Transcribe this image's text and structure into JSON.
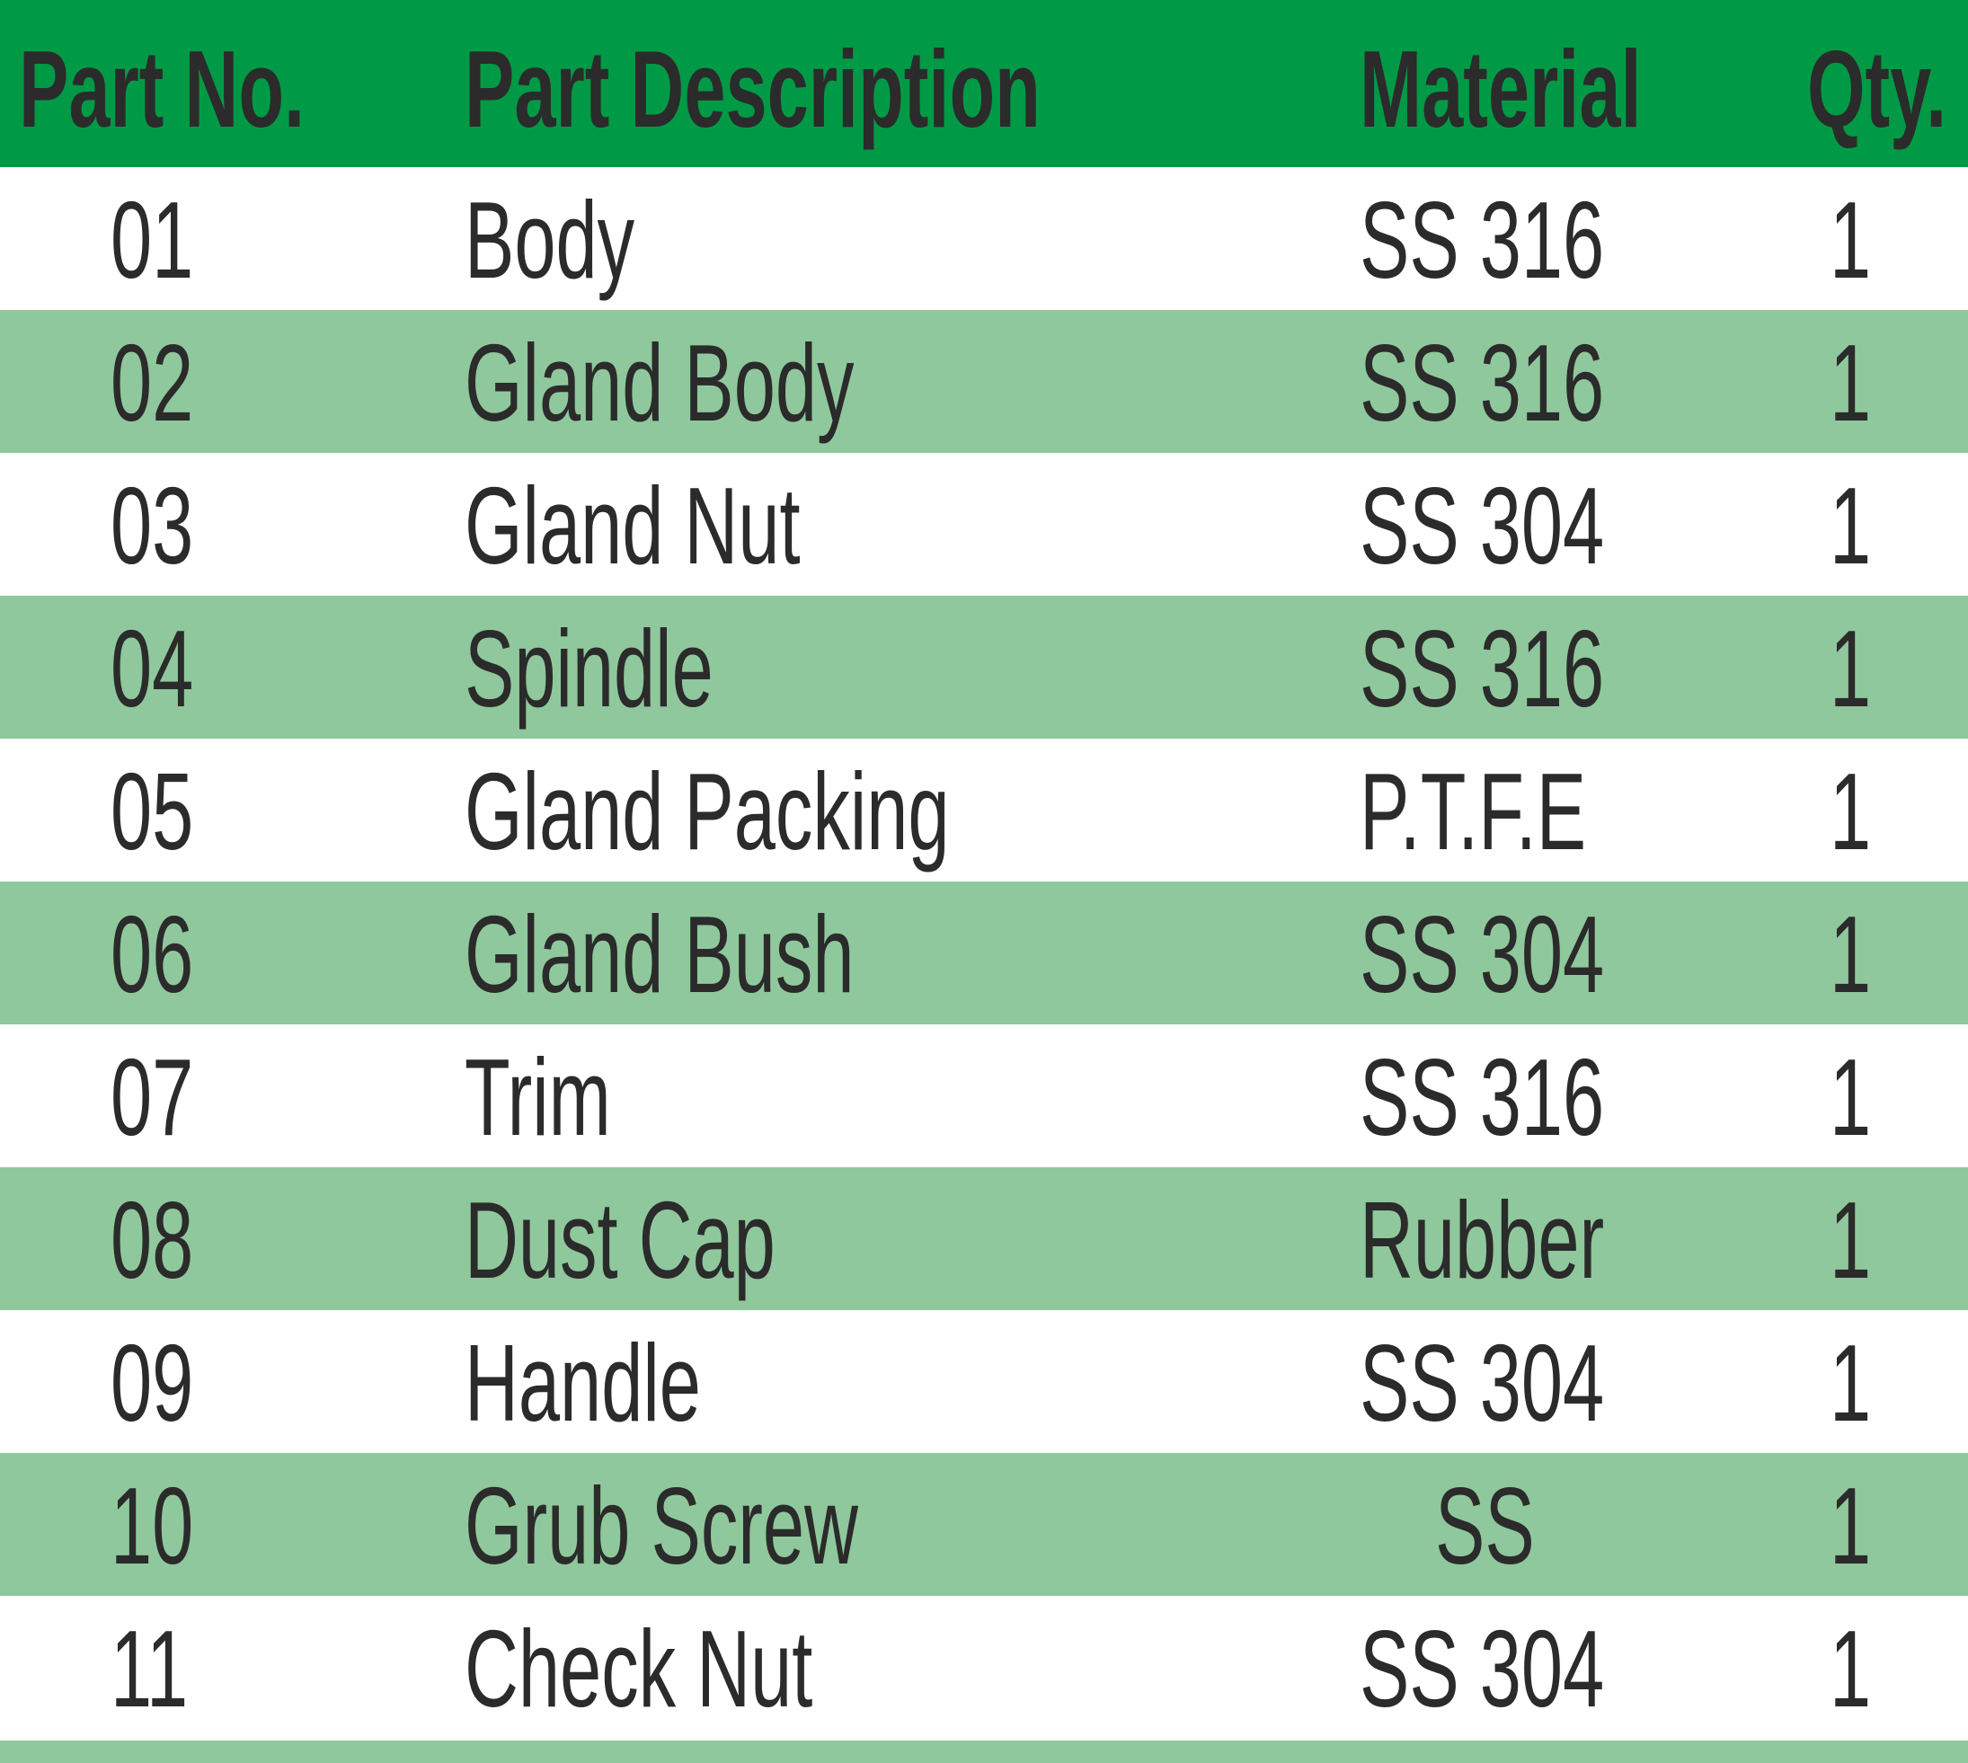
{
  "header": {
    "part_no": "Part No.",
    "description": "Part Description",
    "material": "Material",
    "qty": "Qty."
  },
  "rows": [
    {
      "part_no": "01",
      "description": "Body",
      "material": "SS 316",
      "qty": "1"
    },
    {
      "part_no": "02",
      "description": "Gland Body",
      "material": "SS 316",
      "qty": "1"
    },
    {
      "part_no": "03",
      "description": "Gland Nut",
      "material": "SS 304",
      "qty": "1"
    },
    {
      "part_no": "04",
      "description": "Spindle",
      "material": "SS 316",
      "qty": "1"
    },
    {
      "part_no": "05",
      "description": "Gland Packing",
      "material": "P.T.F.E",
      "qty": "1"
    },
    {
      "part_no": "06",
      "description": "Gland Bush",
      "material": "SS 304",
      "qty": "1"
    },
    {
      "part_no": "07",
      "description": "Trim",
      "material": "SS 316",
      "qty": "1"
    },
    {
      "part_no": "08",
      "description": "Dust Cap",
      "material": "Rubber",
      "qty": "1"
    },
    {
      "part_no": "09",
      "description": "Handle",
      "material": "SS 304",
      "qty": "1"
    },
    {
      "part_no": "10",
      "description": "Grub Screw",
      "material": "SS",
      "qty": "1"
    },
    {
      "part_no": "11",
      "description": "Check Nut",
      "material": "SS 304",
      "qty": "1"
    }
  ],
  "colors": {
    "header": "#009a46",
    "alt_row": "#8fc89c",
    "text": "#2b2b2b"
  }
}
